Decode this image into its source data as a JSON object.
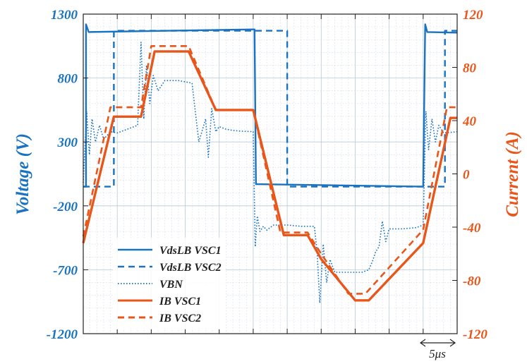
{
  "chart_data": {
    "type": "line",
    "x_unit": "μs",
    "x_range": [
      0,
      55
    ],
    "x_divisions": 11,
    "scale_label": "5μs",
    "left_axis": {
      "label": "Voltage (V)",
      "ylim": [
        -1200,
        1300
      ],
      "ticks": [
        1300,
        800,
        300,
        -200,
        -700,
        -1200
      ],
      "color": "#1a73c0"
    },
    "right_axis": {
      "label": "Current (A)",
      "ylim": [
        -120,
        120
      ],
      "ticks": [
        120,
        80,
        40,
        0,
        -40,
        -80,
        -120
      ],
      "color": "#e8561a"
    },
    "grid": true,
    "legend_position": "bottom-left",
    "series": [
      {
        "name": "VdsLB VSC1",
        "axis": "left",
        "style": "solid",
        "color": "#1a73c0",
        "x": [
          0,
          0.4,
          0.4,
          0.8,
          25,
          25.2,
          25.4,
          50,
          50.3,
          50.6,
          55
        ],
        "y": [
          -50,
          -50,
          1220,
          1160,
          1180,
          1180,
          -30,
          -50,
          1220,
          1160,
          1155
        ]
      },
      {
        "name": "VdsLB VSC2",
        "axis": "left",
        "style": "dashed",
        "color": "#1a73c0",
        "x": [
          0,
          4.5,
          4.5,
          30,
          30,
          53.2,
          53.2,
          55
        ],
        "y": [
          -50,
          -50,
          1170,
          1170,
          -50,
          -50,
          1170,
          1170
        ]
      },
      {
        "name": "VBN",
        "axis": "left",
        "style": "dotted",
        "color": "#1a73c0",
        "x": [
          0,
          0.5,
          0.9,
          1.3,
          1.8,
          2.4,
          3,
          4,
          5,
          6.5,
          8,
          8.5,
          8.9,
          9.3,
          9.8,
          10.3,
          11,
          12,
          14,
          16,
          17,
          18,
          18.4,
          18.9,
          19.5,
          20,
          21,
          22,
          23,
          25,
          25.3,
          25.6,
          26,
          26.5,
          27,
          28,
          30,
          32,
          34,
          34.4,
          34.8,
          35.3,
          35.8,
          36.3,
          37,
          39,
          41,
          42,
          42.5,
          43,
          43.5,
          44,
          44.5,
          45,
          47,
          49,
          50,
          50.4,
          50.8,
          51.3,
          51.8,
          52.3,
          53,
          55
        ],
        "y": [
          -20,
          540,
          200,
          480,
          300,
          430,
          320,
          380,
          370,
          400,
          430,
          1080,
          480,
          900,
          600,
          820,
          700,
          780,
          780,
          760,
          300,
          480,
          180,
          560,
          380,
          420,
          400,
          390,
          385,
          380,
          -520,
          -280,
          -400,
          -360,
          -390,
          -350,
          -350,
          -360,
          -360,
          -560,
          -960,
          -500,
          -800,
          -620,
          -720,
          -720,
          -720,
          -700,
          -640,
          -560,
          -520,
          -320,
          -480,
          -380,
          -380,
          -370,
          -350,
          540,
          240,
          480,
          300,
          430,
          370,
          380
        ]
      },
      {
        "name": "IB VSC1",
        "axis": "right",
        "style": "solid",
        "color": "#e8561a",
        "x": [
          0,
          4.5,
          8.5,
          10.5,
          15.5,
          19.5,
          25,
          29.5,
          33,
          35,
          40,
          42,
          50,
          54,
          55
        ],
        "y": [
          -52,
          43,
          43,
          92,
          92,
          48,
          48,
          -46,
          -46,
          -64,
          -95,
          -95,
          -52,
          42,
          42
        ]
      },
      {
        "name": "IB VSC2",
        "axis": "right",
        "style": "dashed",
        "color": "#e8561a",
        "x": [
          0,
          4,
          8.5,
          10,
          15.5,
          19.5,
          25,
          29,
          33,
          35,
          39,
          41.5,
          50,
          53.5,
          55
        ],
        "y": [
          -47,
          50,
          50,
          96,
          96,
          48,
          48,
          -44,
          -44,
          -60,
          -90,
          -90,
          -42,
          50,
          50
        ]
      }
    ]
  }
}
